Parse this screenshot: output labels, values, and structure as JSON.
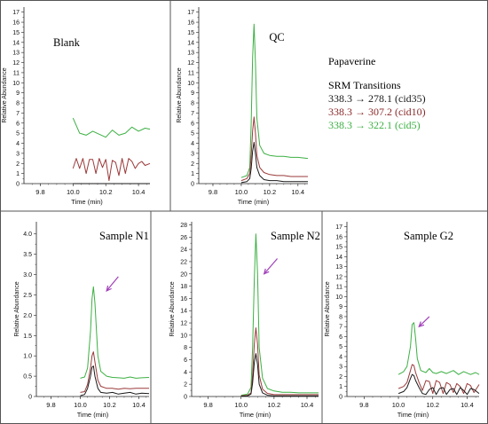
{
  "legend": {
    "compound": "Papaverine",
    "heading": "SRM Transitions",
    "items": [
      {
        "text": "338.3 → 278.1 (cid35)",
        "color": "#1a1a1a"
      },
      {
        "text": "338.3 → 307.2 (cid10)",
        "color": "#8b2a2a"
      },
      {
        "text": "338.3 → 322.1 (cid5)",
        "color": "#3cb043"
      }
    ]
  },
  "colors": {
    "black": "#1a1a1a",
    "red": "#9b3a3a",
    "green": "#3cb043",
    "arrow": "#a040b8",
    "border": "#555555"
  },
  "chart_data": [
    {
      "type": "line",
      "title": "Blank",
      "xlabel": "Time (min)",
      "ylabel": "Relative Abundance",
      "xlim": [
        9.7,
        10.47
      ],
      "ylim": [
        0,
        17.5
      ],
      "xticks": [
        "9.8",
        "10.0",
        "10.2",
        "10.4"
      ],
      "yticks": [
        "0",
        "1",
        "2",
        "3",
        "4",
        "5",
        "6",
        "7",
        "8",
        "9",
        "10",
        "11",
        "12",
        "13",
        "14",
        "15",
        "16",
        "17"
      ],
      "series": [
        {
          "color": "green",
          "x": [
            10.0,
            10.04,
            10.08,
            10.12,
            10.16,
            10.2,
            10.24,
            10.28,
            10.32,
            10.36,
            10.4,
            10.44,
            10.47
          ],
          "y": [
            6.5,
            5.0,
            4.8,
            5.2,
            4.9,
            4.6,
            5.3,
            4.8,
            5.0,
            5.6,
            5.2,
            5.5,
            5.4
          ]
        },
        {
          "color": "red",
          "x": [
            10.0,
            10.02,
            10.04,
            10.06,
            10.08,
            10.1,
            10.12,
            10.14,
            10.16,
            10.18,
            10.2,
            10.22,
            10.24,
            10.26,
            10.28,
            10.3,
            10.32,
            10.34,
            10.36,
            10.38,
            10.4,
            10.42,
            10.44,
            10.47
          ],
          "y": [
            1.5,
            2.5,
            1.5,
            2.5,
            1.0,
            2.4,
            2.4,
            1.0,
            2.5,
            1.6,
            2.4,
            0.3,
            2.3,
            2.1,
            0.8,
            2.5,
            1.0,
            2.5,
            2.2,
            1.5,
            2.0,
            2.2,
            1.8,
            2.0
          ]
        },
        {
          "color": "black",
          "x": [
            10.0,
            10.47
          ],
          "y": [
            0.0,
            0.0
          ]
        }
      ]
    },
    {
      "type": "line",
      "title": "QC",
      "xlabel": "Time (min)",
      "ylabel": "Relative Abundance",
      "xlim": [
        9.7,
        10.47
      ],
      "ylim": [
        0,
        17.5
      ],
      "xticks": [
        "9.8",
        "10.0",
        "10.2",
        "10.4"
      ],
      "yticks": [
        "0",
        "1",
        "2",
        "3",
        "4",
        "5",
        "6",
        "7",
        "8",
        "9",
        "10",
        "11",
        "12",
        "13",
        "14",
        "15",
        "16",
        "17"
      ],
      "series": [
        {
          "color": "green",
          "x": [
            10.0,
            10.04,
            10.06,
            10.07,
            10.08,
            10.09,
            10.1,
            10.11,
            10.13,
            10.16,
            10.2,
            10.25,
            10.3,
            10.35,
            10.4,
            10.47
          ],
          "y": [
            0.6,
            0.8,
            1.6,
            6.0,
            12.5,
            15.8,
            12.0,
            6.5,
            3.8,
            3.0,
            2.8,
            2.7,
            2.7,
            2.6,
            2.6,
            2.5
          ]
        },
        {
          "color": "red",
          "x": [
            10.0,
            10.04,
            10.06,
            10.07,
            10.08,
            10.09,
            10.1,
            10.11,
            10.13,
            10.16,
            10.2,
            10.25,
            10.3,
            10.35,
            10.4,
            10.47
          ],
          "y": [
            0.3,
            0.5,
            1.0,
            2.8,
            5.2,
            6.6,
            5.0,
            2.8,
            1.6,
            1.1,
            0.9,
            0.8,
            0.8,
            0.7,
            0.7,
            0.7
          ]
        },
        {
          "color": "black",
          "x": [
            10.0,
            10.04,
            10.06,
            10.07,
            10.08,
            10.09,
            10.1,
            10.11,
            10.13,
            10.16,
            10.2,
            10.25,
            10.3,
            10.35,
            10.4,
            10.47
          ],
          "y": [
            0.1,
            0.2,
            0.5,
            1.5,
            3.2,
            4.1,
            3.0,
            1.6,
            0.8,
            0.4,
            0.3,
            0.3,
            0.2,
            0.2,
            0.2,
            0.2
          ]
        }
      ]
    },
    {
      "type": "line",
      "title": "Sample N1",
      "xlabel": "Time (min)",
      "ylabel": "Relative Abundance",
      "xlim": [
        9.7,
        10.47
      ],
      "ylim": [
        0,
        4.3
      ],
      "xticks": [
        "9.8",
        "10.0",
        "10.2",
        "10.4"
      ],
      "yticks": [
        "0",
        "0.5",
        "1.0",
        "1.5",
        "2.0",
        "2.5",
        "3.0",
        "3.5",
        "4.0"
      ],
      "series": [
        {
          "color": "green",
          "x": [
            10.0,
            10.03,
            10.05,
            10.07,
            10.08,
            10.09,
            10.1,
            10.12,
            10.14,
            10.18,
            10.22,
            10.26,
            10.3,
            10.34,
            10.38,
            10.42,
            10.47
          ],
          "y": [
            0.45,
            0.48,
            0.7,
            1.6,
            2.4,
            2.7,
            2.3,
            1.0,
            0.62,
            0.5,
            0.47,
            0.46,
            0.45,
            0.48,
            0.45,
            0.46,
            0.47
          ]
        },
        {
          "color": "red",
          "x": [
            10.0,
            10.03,
            10.05,
            10.07,
            10.08,
            10.09,
            10.1,
            10.12,
            10.14,
            10.18,
            10.22,
            10.26,
            10.3,
            10.34,
            10.38,
            10.42,
            10.47
          ],
          "y": [
            0.1,
            0.12,
            0.3,
            0.7,
            1.0,
            1.1,
            0.85,
            0.4,
            0.25,
            0.2,
            0.2,
            0.18,
            0.2,
            0.19,
            0.2,
            0.2,
            0.2
          ]
        },
        {
          "color": "black",
          "x": [
            10.0,
            10.03,
            10.05,
            10.07,
            10.08,
            10.09,
            10.1,
            10.12,
            10.14,
            10.18,
            10.22,
            10.26,
            10.3,
            10.34,
            10.38,
            10.42,
            10.47
          ],
          "y": [
            0.02,
            0.05,
            0.2,
            0.5,
            0.72,
            0.75,
            0.5,
            0.2,
            0.1,
            0.08,
            0.1,
            0.06,
            0.08,
            0.1,
            0.06,
            0.08,
            0.07
          ]
        }
      ],
      "arrow": {
        "from": [
          10.26,
          2.95
        ],
        "to": [
          10.18,
          2.6
        ]
      }
    },
    {
      "type": "line",
      "title": "Sample N2",
      "xlabel": "Time (min)",
      "ylabel": "Relative Abundance",
      "xlim": [
        9.7,
        10.47
      ],
      "ylim": [
        0,
        28.5
      ],
      "xticks": [
        "9.8",
        "10.0",
        "10.2",
        "10.4"
      ],
      "yticks": [
        "0",
        "2",
        "4",
        "6",
        "8",
        "10",
        "12",
        "14",
        "16",
        "18",
        "20",
        "22",
        "24",
        "26",
        "28"
      ],
      "series": [
        {
          "color": "green",
          "x": [
            10.0,
            10.04,
            10.06,
            10.07,
            10.08,
            10.09,
            10.1,
            10.11,
            10.13,
            10.16,
            10.2,
            10.25,
            10.3,
            10.35,
            10.4,
            10.47
          ],
          "y": [
            0.2,
            0.4,
            1.5,
            8.0,
            19.0,
            26.5,
            20.0,
            8.0,
            3.0,
            1.3,
            0.9,
            0.7,
            0.7,
            0.6,
            0.6,
            0.6
          ]
        },
        {
          "color": "red",
          "x": [
            10.0,
            10.04,
            10.06,
            10.07,
            10.08,
            10.09,
            10.1,
            10.11,
            10.13,
            10.16,
            10.2,
            10.25,
            10.3,
            10.35,
            10.4,
            10.47
          ],
          "y": [
            0.1,
            0.2,
            0.6,
            3.5,
            8.5,
            11.2,
            8.5,
            3.5,
            1.2,
            0.5,
            0.3,
            0.3,
            0.3,
            0.3,
            0.3,
            0.3
          ]
        },
        {
          "color": "black",
          "x": [
            10.0,
            10.04,
            10.06,
            10.07,
            10.08,
            10.09,
            10.1,
            10.11,
            10.13,
            10.16,
            10.2,
            10.25,
            10.3,
            10.35,
            10.4,
            10.47
          ],
          "y": [
            0.05,
            0.1,
            0.4,
            2.2,
            5.5,
            7.0,
            5.2,
            2.0,
            0.6,
            0.2,
            0.1,
            0.1,
            0.1,
            0.1,
            0.1,
            0.1
          ]
        }
      ],
      "arrow": {
        "from": [
          10.22,
          22.5
        ],
        "to": [
          10.14,
          20.0
        ]
      }
    },
    {
      "type": "line",
      "title": "Sample G2",
      "xlabel": "Time (min)",
      "ylabel": "Relative Abundance",
      "xlim": [
        9.7,
        10.47
      ],
      "ylim": [
        0,
        17.5
      ],
      "xticks": [
        "9.8",
        "10.0",
        "10.2",
        "10.4"
      ],
      "yticks": [
        "0",
        "1",
        "2",
        "3",
        "4",
        "5",
        "6",
        "7",
        "8",
        "9",
        "10",
        "11",
        "12",
        "13",
        "14",
        "15",
        "16",
        "17"
      ],
      "series": [
        {
          "color": "green",
          "x": [
            10.0,
            10.03,
            10.05,
            10.07,
            10.08,
            10.09,
            10.1,
            10.11,
            10.13,
            10.16,
            10.18,
            10.2,
            10.22,
            10.25,
            10.28,
            10.32,
            10.35,
            10.38,
            10.42,
            10.45,
            10.47
          ],
          "y": [
            2.2,
            2.5,
            3.0,
            5.0,
            7.2,
            7.4,
            5.8,
            3.8,
            2.6,
            2.4,
            2.8,
            2.4,
            2.3,
            2.5,
            2.3,
            2.6,
            2.2,
            2.5,
            2.2,
            2.4,
            2.2
          ]
        },
        {
          "color": "red",
          "x": [
            10.0,
            10.03,
            10.05,
            10.07,
            10.08,
            10.09,
            10.1,
            10.12,
            10.14,
            10.16,
            10.18,
            10.2,
            10.22,
            10.24,
            10.26,
            10.28,
            10.3,
            10.32,
            10.34,
            10.36,
            10.38,
            10.4,
            10.42,
            10.44,
            10.47
          ],
          "y": [
            0.8,
            1.0,
            1.4,
            2.6,
            3.2,
            3.1,
            2.4,
            1.4,
            0.6,
            1.6,
            1.5,
            0.3,
            1.6,
            1.4,
            0.3,
            1.4,
            1.2,
            0.4,
            1.3,
            1.0,
            0.3,
            1.3,
            1.1,
            0.4,
            1.2
          ]
        },
        {
          "color": "black",
          "x": [
            10.0,
            10.03,
            10.05,
            10.07,
            10.08,
            10.09,
            10.1,
            10.12,
            10.14,
            10.16,
            10.18,
            10.2,
            10.22,
            10.24,
            10.26,
            10.28,
            10.3,
            10.32,
            10.34,
            10.36,
            10.38,
            10.4,
            10.42,
            10.44,
            10.47
          ],
          "y": [
            0.3,
            0.5,
            0.9,
            1.8,
            2.2,
            2.1,
            1.6,
            0.9,
            0.3,
            0.2,
            0.7,
            0.9,
            0.2,
            0.8,
            0.9,
            0.2,
            0.7,
            0.8,
            0.2,
            0.9,
            0.6,
            0.2,
            0.8,
            0.7,
            0.3
          ]
        }
      ],
      "arrow": {
        "from": [
          10.18,
          8.0
        ],
        "to": [
          10.12,
          7.0
        ]
      }
    }
  ]
}
